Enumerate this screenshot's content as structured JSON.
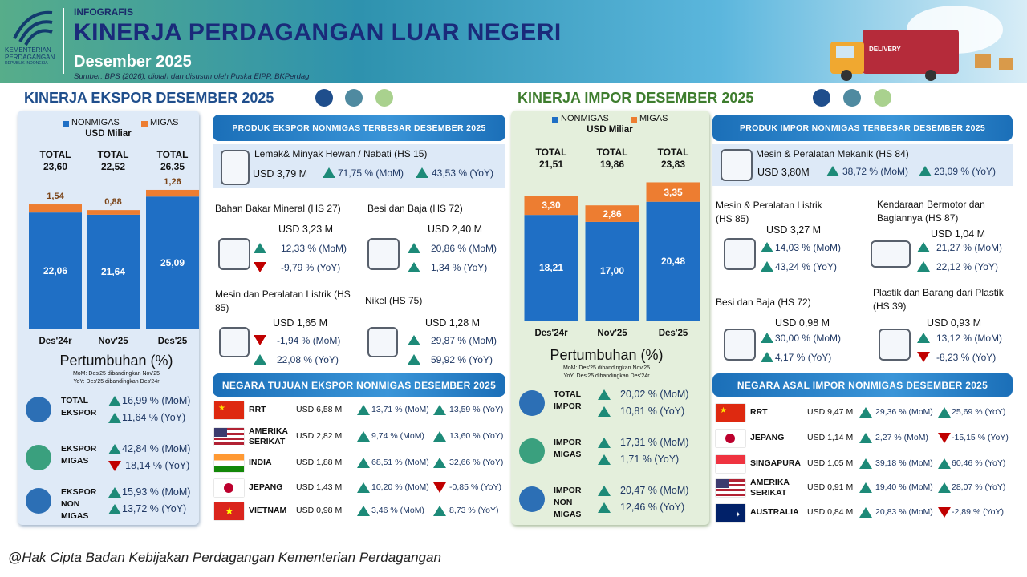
{
  "header": {
    "label": "INFOGRAFIS",
    "title": "KINERJA PERDAGANGAN LUAR NEGERI",
    "period": "Desember 2025",
    "source": "Sumber: BPS (2026), diolah dan disusun oleh Puska EIPP, BKPerdag",
    "logo": [
      "KEMENTERIAN",
      "PERDAGANGAN",
      "REPUBLIK INDONESIA"
    ],
    "truck": "DELIVERY"
  },
  "export": {
    "title": "KINERJA EKSPOR DESEMBER 2025",
    "growth": {
      "title": "Pertumbuhan (%)",
      "notes": [
        "MoM: Des'25 dibandingkan Nov'25",
        "YoY: Des'25 dibandingkan Des'24r"
      ],
      "rows": [
        {
          "label": "TOTAL EKSPOR",
          "mom": "16,99 % (MoM)",
          "yoy": "11,64 % (YoY)"
        },
        {
          "label": "EKSPOR MIGAS",
          "mom": "42,84 % (MoM)",
          "yoy": "-18,14 % (YoY)"
        },
        {
          "label": "EKSPOR NON MIGAS",
          "mom": "15,93 % (MoM)",
          "yoy": "13,72 % (YoY)"
        }
      ]
    },
    "products_title": "PRODUK EKSPOR NONMIGAS TERBESAR DESEMBER 2025",
    "products": [
      {
        "name": "Lemak& Minyak Hewan / Nabati (HS 15)",
        "value": "USD 3,79 M",
        "mom": "71,75 % (MoM)",
        "yoy": "43,53 % (YoY)"
      },
      {
        "name": "Bahan Bakar Mineral (HS 27)",
        "value": "USD 3,23 M",
        "mom": "12,33 % (MoM)",
        "yoy": "-9,79 % (YoY)"
      },
      {
        "name": "Besi dan Baja (HS 72)",
        "value": "USD 2,40 M",
        "mom": "20,86 % (MoM)",
        "yoy": "1,34 % (YoY)"
      },
      {
        "name": "Mesin dan Peralatan Listrik (HS 85)",
        "value": "USD 1,65 M",
        "mom": "-1,94 % (MoM)",
        "yoy": "22,08 % (YoY)"
      },
      {
        "name": "Nikel (HS 75)",
        "value": "USD 1,28 M",
        "mom": "29,87 % (MoM)",
        "yoy": "59,92 % (YoY)"
      }
    ],
    "countries_title": "NEGARA TUJUAN EKSPOR NONMIGAS DESEMBER 2025",
    "countries": [
      {
        "name": "RRT",
        "value": "USD 6,58 M",
        "mom": "13,71 % (MoM)",
        "yoy": "13,59 % (YoY)"
      },
      {
        "name": "AMERIKA SERIKAT",
        "value": "USD 2,82 M",
        "mom": "9,74 % (MoM)",
        "yoy": "13,60 % (YoY)"
      },
      {
        "name": "INDIA",
        "value": "USD 1,88 M",
        "mom": "68,51 % (MoM)",
        "yoy": "32,66 % (YoY)"
      },
      {
        "name": "JEPANG",
        "value": "USD 1,43 M",
        "mom": "10,20 % (MoM)",
        "yoy": "-0,85 % (YoY)"
      },
      {
        "name": "VIETNAM",
        "value": "USD 0,98 M",
        "mom": "3,46 % (MoM)",
        "yoy": "8,73 % (YoY)"
      }
    ]
  },
  "import": {
    "title": "KINERJA IMPOR DESEMBER 2025",
    "growth": {
      "title": "Pertumbuhan (%)",
      "notes": [
        "MoM: Des'25 dibandingkan Nov'25",
        "YoY: Des'25 dibandingkan Des'24r"
      ],
      "rows": [
        {
          "label": "TOTAL IMPOR",
          "mom": "20,02 % (MoM)",
          "yoy": "10,81 % (YoY)"
        },
        {
          "label": "IMPOR MIGAS",
          "mom": "17,31 % (MoM)",
          "yoy": "1,71 % (YoY)"
        },
        {
          "label": "IMPOR NON MIGAS",
          "mom": "20,47 % (MoM)",
          "yoy": "12,46 % (YoY)"
        }
      ]
    },
    "products_title": "PRODUK IMPOR NONMIGAS TERBESAR DESEMBER 2025",
    "products": [
      {
        "name": "Mesin & Peralatan Mekanik (HS 84)",
        "value": "USD 3,80M",
        "mom": "38,72 % (MoM)",
        "yoy": "23,09 % (YoY)"
      },
      {
        "name": "Mesin & Peralatan Listrik (HS 85)",
        "value": "USD 3,27 M",
        "mom": "14,03 % (MoM)",
        "yoy": "43,24 % (YoY)"
      },
      {
        "name": "Kendaraan Bermotor dan Bagiannya (HS 87)",
        "value": "USD 1,04 M",
        "mom": "21,27 % (MoM)",
        "yoy": "22,12 % (YoY)"
      },
      {
        "name": "Besi dan Baja (HS 72)",
        "value": "USD 0,98 M",
        "mom": "30,00 % (MoM)",
        "yoy": "4,17 % (YoY)"
      },
      {
        "name": "Plastik dan Barang dari Plastik (HS 39)",
        "value": "USD 0,93 M",
        "mom": "13,12 % (MoM)",
        "yoy": "-8,23 % (YoY)"
      }
    ],
    "countries_title": "NEGARA ASAL IMPOR NONMIGAS DESEMBER 2025",
    "countries": [
      {
        "name": "RRT",
        "value": "USD 9,47 M",
        "mom": "29,36 % (MoM)",
        "yoy": "25,69 % (YoY)"
      },
      {
        "name": "JEPANG",
        "value": "USD 1,14 M",
        "mom": "2,27 % (MoM)",
        "yoy": "-15,15 % (YoY)"
      },
      {
        "name": "SINGAPURA",
        "value": "USD 1,05 M",
        "mom": "39,18 % (MoM)",
        "yoy": "60,46 % (YoY)"
      },
      {
        "name": "AMERIKA SERIKAT",
        "value": "USD 0,91 M",
        "mom": "19,40 % (MoM)",
        "yoy": "28,07 % (YoY)"
      },
      {
        "name": "AUSTRALIA",
        "value": "USD 0,84 M",
        "mom": "20,83 % (MoM)",
        "yoy": "-2,89 % (YoY)"
      }
    ]
  },
  "chart_data": [
    {
      "type": "stacked-bar",
      "unit": "USD Miliar",
      "categories": [
        "Des'24r",
        "Nov'25",
        "Des'25"
      ],
      "series": [
        {
          "name": "NONMIGAS",
          "color": "#1f6fc5",
          "values": [
            22.06,
            21.64,
            25.09
          ],
          "value_labels": [
            "22,06",
            "21,64",
            "25,09"
          ]
        },
        {
          "name": "MIGAS",
          "color": "#ed7d31",
          "values": [
            1.54,
            0.88,
            1.26
          ],
          "value_labels": [
            "1,54",
            "0,88",
            "1,26"
          ]
        }
      ],
      "total_label": "TOTAL",
      "total_labels": [
        "23,60",
        "22,52",
        "26,35"
      ],
      "ylim": [
        0,
        30
      ]
    },
    {
      "type": "stacked-bar",
      "unit": "USD Miliar",
      "categories": [
        "Des'24r",
        "Nov'25",
        "Des'25"
      ],
      "series": [
        {
          "name": "NONMIGAS",
          "color": "#1f6fc5",
          "values": [
            18.21,
            17.0,
            20.48
          ],
          "value_labels": [
            "18,21",
            "17,00",
            "20,48"
          ]
        },
        {
          "name": "MIGAS",
          "color": "#ed7d31",
          "values": [
            3.3,
            2.86,
            3.35
          ],
          "value_labels": [
            "3,30",
            "2,86",
            "3,35"
          ]
        }
      ],
      "total_label": "TOTAL",
      "total_labels": [
        "21,51",
        "19,86",
        "23,83"
      ],
      "ylim": [
        0,
        25
      ]
    }
  ],
  "footer": "@Hak Cipta Badan Kebijakan Perdagangan Kementerian Perdagangan"
}
